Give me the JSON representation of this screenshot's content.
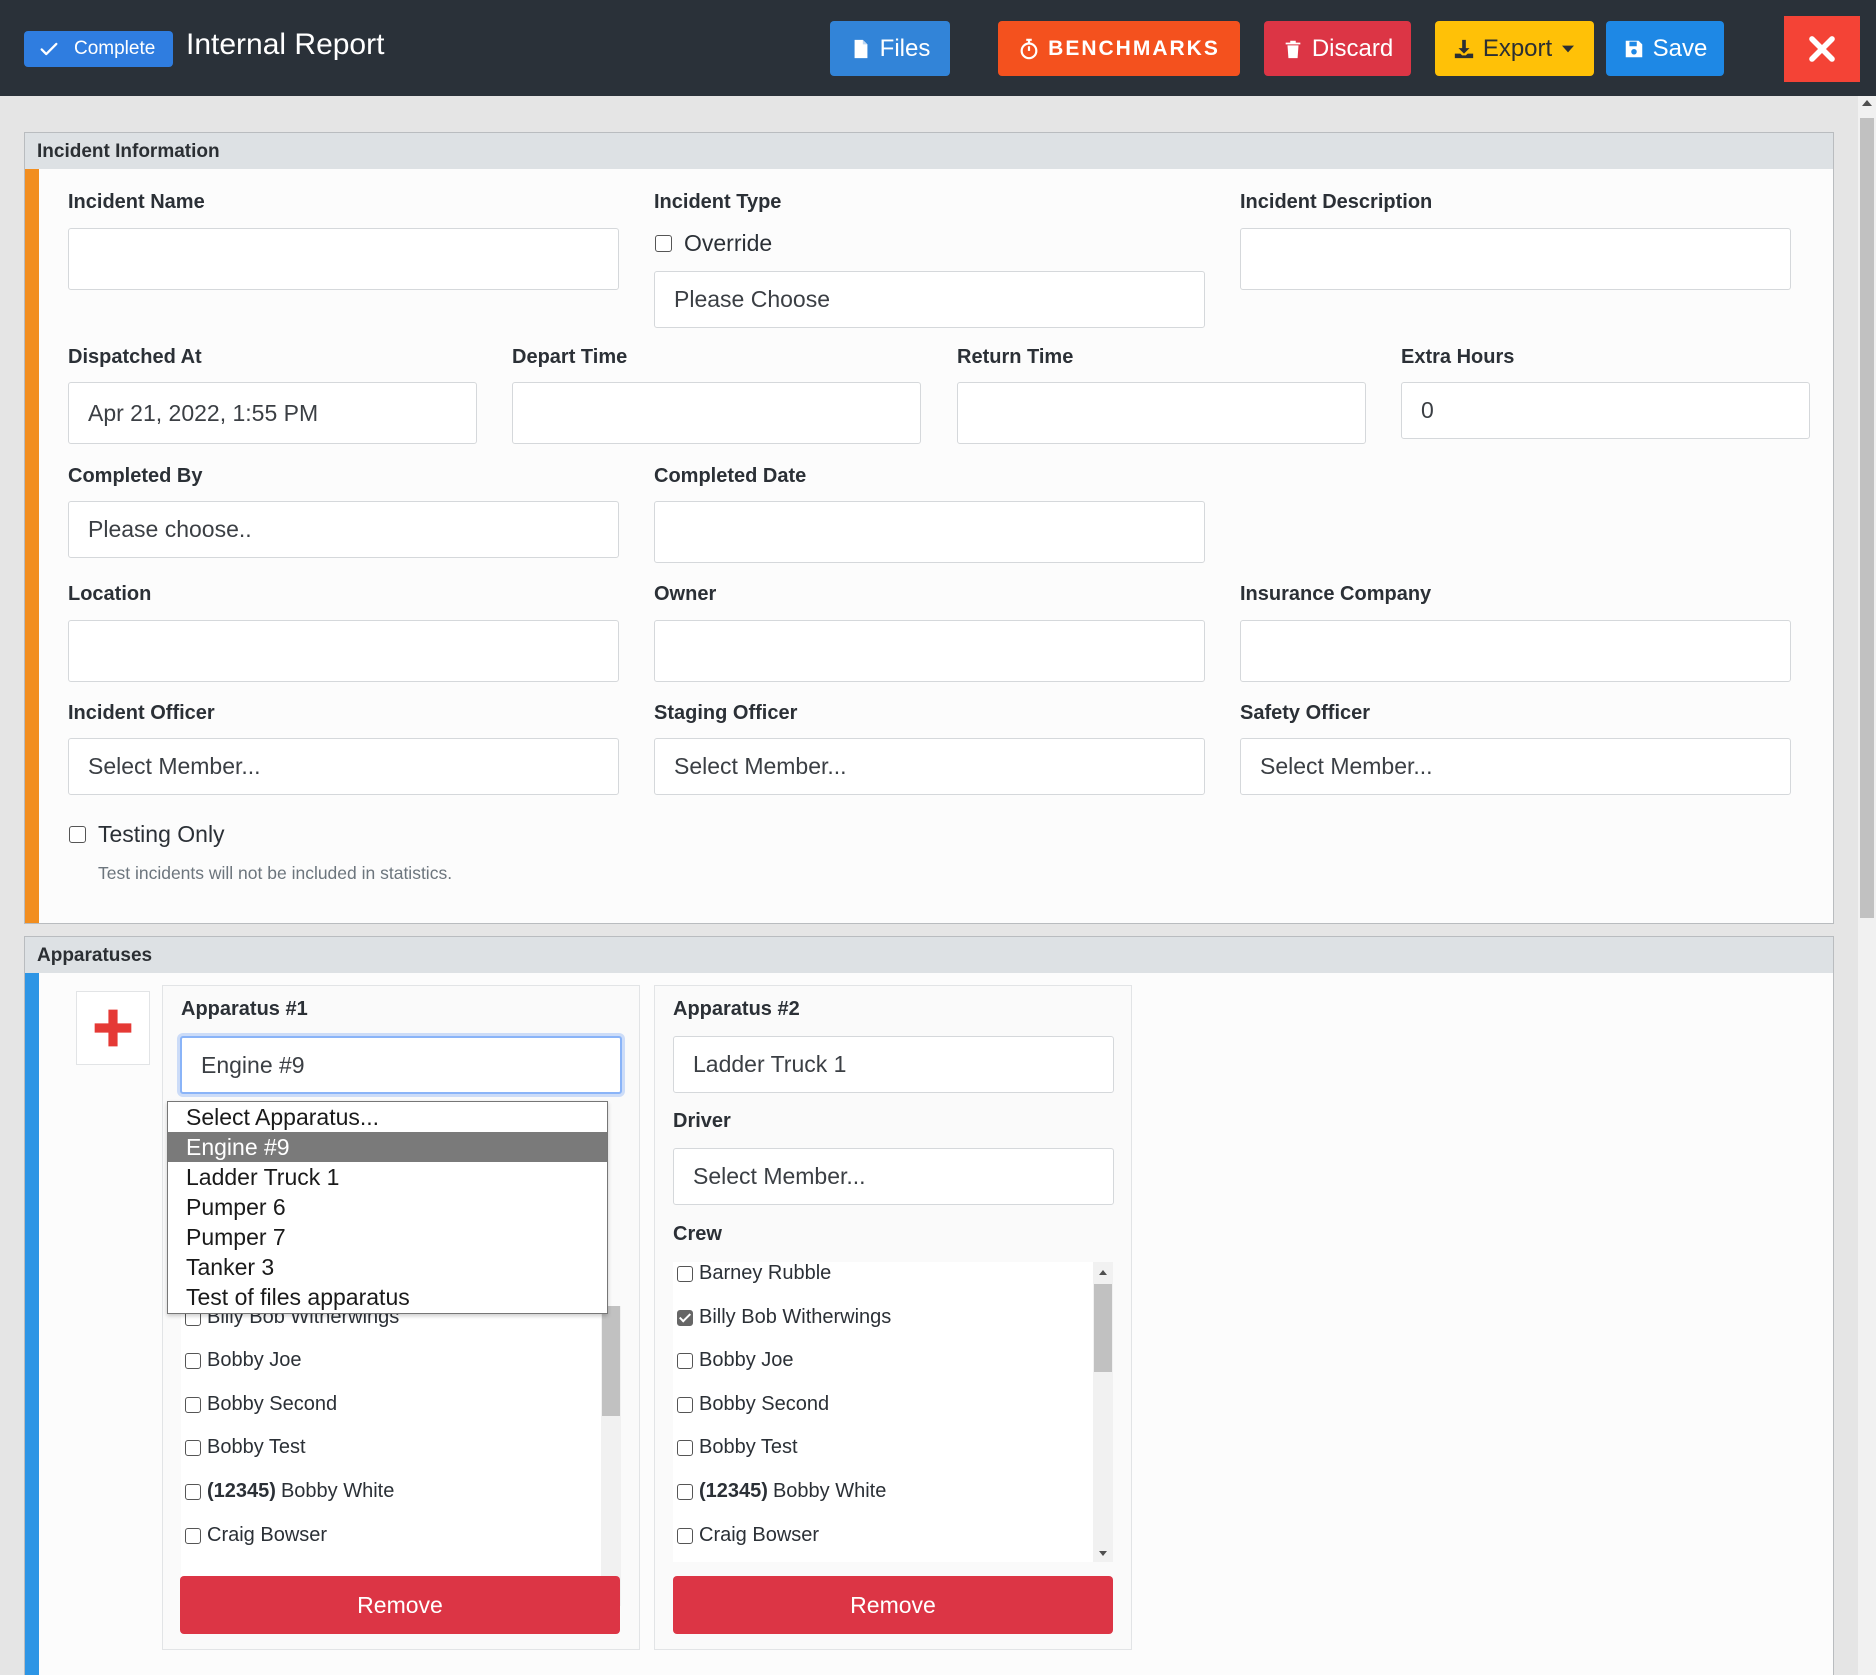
{
  "header": {
    "status_badge": "Complete",
    "title": "Internal Report",
    "files_label": "Files",
    "benchmarks_label": "BENCHMARKS",
    "discard_label": "Discard",
    "export_label": "Export",
    "save_label": "Save"
  },
  "incident": {
    "section_title": "Incident Information",
    "name_label": "Incident Name",
    "name_value": "",
    "type_label": "Incident Type",
    "override_label": "Override",
    "type_value": "Please Choose",
    "description_label": "Incident Description",
    "description_value": "",
    "dispatched_label": "Dispatched At",
    "dispatched_value": "Apr 21, 2022, 1:55 PM",
    "depart_label": "Depart Time",
    "return_label": "Return Time",
    "extra_label": "Extra Hours",
    "extra_value": "0",
    "completed_by_label": "Completed By",
    "completed_by_value": "Please choose..",
    "completed_date_label": "Completed Date",
    "location_label": "Location",
    "owner_label": "Owner",
    "insurance_label": "Insurance Company",
    "incident_officer_label": "Incident Officer",
    "staging_officer_label": "Staging Officer",
    "safety_officer_label": "Safety Officer",
    "select_member": "Select Member...",
    "testing_label": "Testing Only",
    "testing_hint": "Test incidents will not be included in statistics."
  },
  "apparatuses": {
    "section_title": "Apparatuses",
    "remove_label": "Remove",
    "driver_label": "Driver",
    "crew_label": "Crew",
    "select_member": "Select Member...",
    "app1": {
      "title": "Apparatus #1",
      "value": "Engine #9",
      "dropdown": [
        "Select Apparatus...",
        "Engine #9",
        "Ladder Truck 1",
        "Pumper 6",
        "Pumper 7",
        "Tanker 3",
        "Test of files apparatus"
      ],
      "crew_visible": [
        {
          "id": "",
          "name": "Billy Bob Witherwings",
          "checked": false
        },
        {
          "id": "",
          "name": "Bobby Joe",
          "checked": false
        },
        {
          "id": "",
          "name": "Bobby Second",
          "checked": false
        },
        {
          "id": "",
          "name": "Bobby Test",
          "checked": false
        },
        {
          "id": "(12345)",
          "name": "Bobby White",
          "checked": false
        },
        {
          "id": "",
          "name": "Craig Bowser",
          "checked": false
        }
      ]
    },
    "app2": {
      "title": "Apparatus #2",
      "value": "Ladder Truck 1",
      "crew": [
        {
          "id": "",
          "name": "Barney Rubble",
          "checked": false
        },
        {
          "id": "",
          "name": "Billy Bob Witherwings",
          "checked": true
        },
        {
          "id": "",
          "name": "Bobby Joe",
          "checked": false
        },
        {
          "id": "",
          "name": "Bobby Second",
          "checked": false
        },
        {
          "id": "",
          "name": "Bobby Test",
          "checked": false
        },
        {
          "id": "(12345)",
          "name": "Bobby White",
          "checked": false
        },
        {
          "id": "",
          "name": "Craig Bowser",
          "checked": false
        }
      ]
    }
  },
  "colors": {
    "topbar": "#2a3139",
    "files": "#3284d8",
    "benchmarks": "#f4511e",
    "discard": "#dc3545",
    "export": "#ffc107",
    "save": "#1e88e5",
    "close": "#f44336",
    "incident_accent": "#f28e1f",
    "apparatus_accent": "#2d95e5"
  }
}
